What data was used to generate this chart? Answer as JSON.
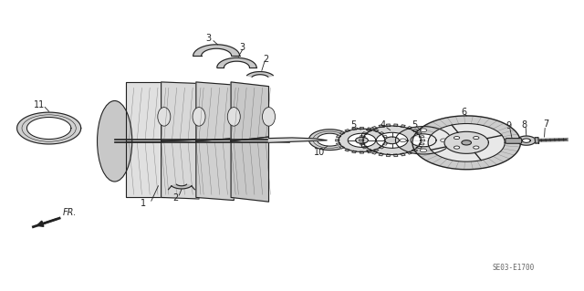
{
  "bg_color": "#ffffff",
  "line_color": "#222222",
  "fig_width": 6.4,
  "fig_height": 3.19,
  "dpi": 100,
  "diagram_code_label": "SE03-E1700",
  "fr_label": "FR."
}
